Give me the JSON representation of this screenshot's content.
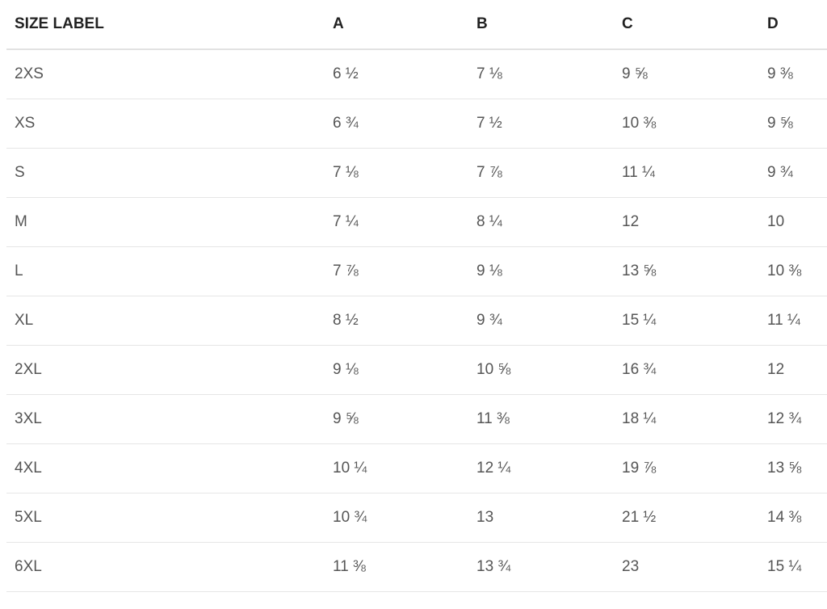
{
  "table": {
    "header": [
      "SIZE LABEL",
      "A",
      "B",
      "C",
      "D"
    ],
    "rows": [
      [
        "2XS",
        "6 ½",
        "7 ⅛",
        "9 ⅝",
        "9 ⅜"
      ],
      [
        "XS",
        "6 ¾",
        "7 ½",
        "10 ⅜",
        "9 ⅝"
      ],
      [
        "S",
        "7 ⅛",
        "7 ⅞",
        "11 ¼",
        "9 ¾"
      ],
      [
        "M",
        "7 ¼",
        "8 ¼",
        "12",
        "10"
      ],
      [
        "L",
        "7 ⅞",
        "9 ⅛",
        "13 ⅝",
        "10 ⅜"
      ],
      [
        "XL",
        "8 ½",
        "9 ¾",
        "15 ¼",
        "11 ¼"
      ],
      [
        "2XL",
        "9 ⅛",
        "10 ⅝",
        "16 ¾",
        "12"
      ],
      [
        "3XL",
        "9 ⅝",
        "11 ⅜",
        "18 ¼",
        "12 ¾"
      ],
      [
        "4XL",
        "10 ¼",
        "12 ¼",
        "19 ⅞",
        "13 ⅝"
      ],
      [
        "5XL",
        "10 ¾",
        "13",
        "21 ½",
        "14 ⅜"
      ],
      [
        "6XL",
        "11 ⅜",
        "13 ¾",
        "23",
        "15 ¼"
      ]
    ]
  }
}
